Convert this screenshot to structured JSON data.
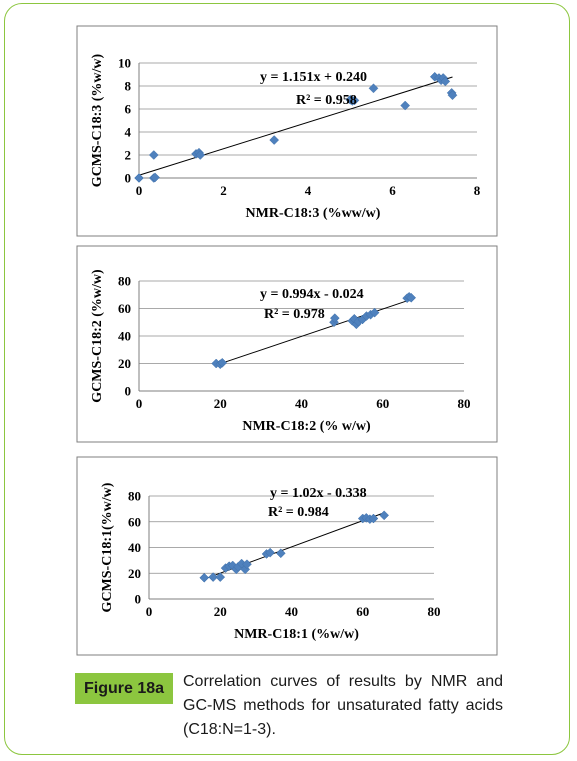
{
  "figure": {
    "label": "Figure 18a",
    "caption": "Correlation curves of results by NMR and GC-MS methods for unsaturated fatty acids (C18:N=1-3)."
  },
  "colors": {
    "marker": "#4f81bd",
    "frame": "#8cc63f",
    "badge": "#8cc63f",
    "panel_border": "#7f7f7f"
  },
  "chart_data": [
    {
      "type": "scatter",
      "xlabel": "NMR-C18:3 (%ww/w)",
      "ylabel": "GCMS-C18:3 (%w/w)",
      "xlim": [
        0,
        8
      ],
      "ylim": [
        0,
        10
      ],
      "xticks": [
        0,
        2,
        4,
        6,
        8
      ],
      "yticks": [
        0,
        2,
        4,
        6,
        8,
        10
      ],
      "equation": "y = 1.151x + 0.240",
      "r2": "R² = 0.958",
      "trendline": {
        "slope": 1.151,
        "intercept": 0.24
      },
      "grid": true,
      "points": [
        [
          0.0,
          0.0
        ],
        [
          0.35,
          0.0
        ],
        [
          0.38,
          0.05
        ],
        [
          0.35,
          2.0
        ],
        [
          1.35,
          2.1
        ],
        [
          1.42,
          2.2
        ],
        [
          1.45,
          2.0
        ],
        [
          3.2,
          3.3
        ],
        [
          5.0,
          6.8
        ],
        [
          5.05,
          6.7
        ],
        [
          5.1,
          6.75
        ],
        [
          5.55,
          7.8
        ],
        [
          6.3,
          6.3
        ],
        [
          7.0,
          8.8
        ],
        [
          7.1,
          8.7
        ],
        [
          7.15,
          8.5
        ],
        [
          7.2,
          8.7
        ],
        [
          7.25,
          8.4
        ],
        [
          7.4,
          7.4
        ],
        [
          7.42,
          7.2
        ]
      ]
    },
    {
      "type": "scatter",
      "xlabel": "NMR-C18:2 (% w/w)",
      "ylabel": "GCMS-C18:2 (%w/w)",
      "xlim": [
        0,
        80
      ],
      "ylim": [
        0,
        80
      ],
      "xticks": [
        0,
        20,
        40,
        60,
        80
      ],
      "yticks": [
        0,
        20,
        40,
        60,
        80
      ],
      "equation": "y = 0.994x - 0.024",
      "r2": "R² = 0.978",
      "trendline": {
        "slope": 0.994,
        "intercept": -0.024
      },
      "grid": true,
      "points": [
        [
          19.0,
          20.0
        ],
        [
          20.0,
          19.5
        ],
        [
          20.5,
          20.5
        ],
        [
          48.0,
          50.0
        ],
        [
          48.2,
          53.0
        ],
        [
          52.5,
          51.0
        ],
        [
          53.0,
          52.5
        ],
        [
          53.5,
          48.5
        ],
        [
          54.0,
          50.5
        ],
        [
          55.0,
          52.0
        ],
        [
          56.0,
          54.5
        ],
        [
          57.0,
          55.5
        ],
        [
          58.0,
          57.0
        ],
        [
          66.0,
          67.5
        ],
        [
          66.5,
          68.5
        ],
        [
          67.0,
          67.8
        ]
      ]
    },
    {
      "type": "scatter",
      "xlabel": "NMR-C18:1 (%w/w)",
      "ylabel": "GCMS-C18:1(%w/w)",
      "xlim": [
        0,
        80
      ],
      "ylim": [
        0,
        80
      ],
      "xticks": [
        0,
        20,
        40,
        60,
        80
      ],
      "yticks": [
        0,
        20,
        40,
        60,
        80
      ],
      "equation": "y = 1.02x - 0.338",
      "r2": "R² = 0.984",
      "trendline": {
        "slope": 1.02,
        "intercept": -0.338
      },
      "grid": true,
      "points": [
        [
          15.5,
          16.5
        ],
        [
          18.0,
          17.0
        ],
        [
          20.0,
          17.0
        ],
        [
          21.5,
          24.0
        ],
        [
          22.5,
          25.5
        ],
        [
          23.5,
          26.0
        ],
        [
          24.5,
          23.0
        ],
        [
          25.0,
          25.0
        ],
        [
          26.0,
          27.5
        ],
        [
          27.0,
          23.0
        ],
        [
          27.5,
          27.0
        ],
        [
          33.0,
          35.0
        ],
        [
          34.0,
          36.0
        ],
        [
          37.0,
          35.5
        ],
        [
          60.0,
          62.5
        ],
        [
          61.0,
          63.0
        ],
        [
          62.0,
          62.0
        ],
        [
          63.0,
          62.5
        ],
        [
          66.0,
          65.0
        ]
      ]
    }
  ]
}
